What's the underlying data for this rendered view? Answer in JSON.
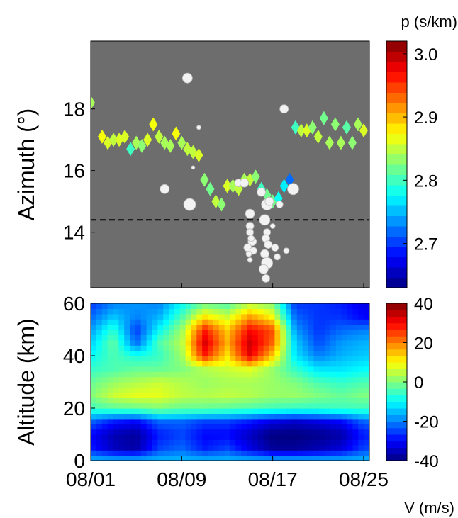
{
  "chart_data": [
    {
      "type": "scatter",
      "ylabel": "Azimuth (°)",
      "yticks": [
        14,
        16,
        18
      ],
      "ylim": [
        12.2,
        20.2
      ],
      "xlim": [
        0,
        24.5
      ],
      "colorbar": {
        "label": "p (s/km)",
        "ticks": [
          "3.0",
          "2.9",
          "2.8",
          "2.7"
        ],
        "tick_values": [
          3.0,
          2.9,
          2.8,
          2.7
        ],
        "range": [
          2.63,
          3.02
        ]
      },
      "reference_line": 14.4,
      "background": "#6d6d6d",
      "series": [
        {
          "kind": "diamonds",
          "x": [
            0,
            1,
            1.5,
            2,
            2.5,
            3,
            3.5,
            4,
            4.5,
            5,
            5.5,
            6,
            6.5,
            7,
            7.5,
            8,
            8.5,
            9,
            9.5,
            10,
            10.5,
            11,
            11.5,
            12,
            12.5,
            13,
            13.5,
            14,
            14.5,
            15,
            15.5,
            16,
            16.5,
            17,
            17.5,
            18,
            18.5,
            19,
            19.5,
            20,
            20.5,
            21,
            21.5,
            22,
            22.5,
            23,
            23.5,
            24
          ],
          "y": [
            18.2,
            17.1,
            16.9,
            17.0,
            17.0,
            17.1,
            16.7,
            16.9,
            16.8,
            17.0,
            17.5,
            17.1,
            16.9,
            16.8,
            17.2,
            16.9,
            16.7,
            16.6,
            16.5,
            15.7,
            15.4,
            15.0,
            14.9,
            15.5,
            15.5,
            15.4,
            15.7,
            15.7,
            15.8,
            15.4,
            15.2,
            15.0,
            15.1,
            15.5,
            15.7,
            17.4,
            17.3,
            17.3,
            17.4,
            17.1,
            17.7,
            16.9,
            17.5,
            16.9,
            17.4,
            16.9,
            17.5,
            17.3
          ],
          "p": [
            2.84,
            2.87,
            2.86,
            2.85,
            2.86,
            2.86,
            2.8,
            2.84,
            2.83,
            2.86,
            2.87,
            2.85,
            2.84,
            2.84,
            2.87,
            2.84,
            2.85,
            2.85,
            2.86,
            2.83,
            2.82,
            2.85,
            2.83,
            2.86,
            2.84,
            2.85,
            2.84,
            2.85,
            2.83,
            2.8,
            2.82,
            2.82,
            2.78,
            2.77,
            2.72,
            2.8,
            2.85,
            2.86,
            2.83,
            2.85,
            2.82,
            2.84,
            2.83,
            2.84,
            2.81,
            2.83,
            2.84,
            2.86
          ]
        },
        {
          "kind": "circles",
          "x": [
            6.5,
            8.5,
            8.7,
            9,
            9.5,
            13,
            13.5,
            14,
            14,
            14,
            14.2,
            13.8,
            14.3,
            14.1,
            13.9,
            14,
            15,
            15.3,
            15.5,
            15.7,
            15.5,
            15.4,
            15.6,
            15.3,
            15.5,
            15.2,
            15.4,
            16.2,
            16.4,
            17.8,
            17,
            16.6,
            17.2,
            16
          ],
          "y": [
            15.4,
            19.0,
            14.9,
            16.1,
            17.4,
            15.6,
            15.6,
            14.6,
            14.2,
            14.0,
            13.7,
            13.5,
            13.4,
            13.8,
            13.3,
            13.1,
            15.3,
            14.4,
            14.9,
            15.0,
            14.0,
            13.8,
            13.6,
            13.3,
            13.0,
            12.8,
            12.5,
            13.5,
            13.2,
            15.4,
            18.0,
            14.9,
            13.4,
            14.2
          ],
          "size": [
            11,
            12,
            15,
            3,
            4,
            9,
            10,
            11,
            9,
            8,
            10,
            9,
            8,
            7,
            6,
            5,
            10,
            13,
            14,
            10,
            8,
            9,
            9,
            10,
            14,
            11,
            9,
            8,
            7,
            14,
            10,
            8,
            6,
            5
          ]
        }
      ]
    },
    {
      "type": "heatmap",
      "ylabel": "Altitude (km)",
      "yticks": [
        0,
        20,
        40,
        60
      ],
      "ylim": [
        0,
        60
      ],
      "xticks": [
        "08/01",
        "08/09",
        "08/17",
        "08/25"
      ],
      "xtick_days": [
        0,
        8,
        16,
        24
      ],
      "xlim": [
        0,
        24.5
      ],
      "colorbar": {
        "label": "V (m/s)",
        "ticks": [
          "40",
          "20",
          "0",
          "-20",
          "-40"
        ],
        "tick_values": [
          40,
          20,
          0,
          -20,
          -40
        ],
        "range": [
          -40,
          40
        ]
      },
      "days": [
        0,
        2,
        4,
        6,
        8,
        10,
        12,
        14,
        16,
        18,
        20,
        22,
        24
      ],
      "altitudes_km": [
        0,
        5,
        10,
        15,
        20,
        25,
        30,
        35,
        40,
        45,
        50,
        55,
        60
      ],
      "wind_ms": [
        [
          -15,
          -15,
          -15,
          -15,
          -15,
          -15,
          -15,
          -15,
          -15,
          -15,
          -15,
          -15,
          -15
        ],
        [
          -28,
          -35,
          -37,
          -25,
          -22,
          -28,
          -25,
          -32,
          -38,
          -38,
          -36,
          -33,
          -25
        ],
        [
          -30,
          -36,
          -38,
          -28,
          -25,
          -30,
          -30,
          -35,
          -40,
          -40,
          -39,
          -37,
          -28
        ],
        [
          -22,
          -28,
          -30,
          -22,
          -22,
          -25,
          -25,
          -28,
          -32,
          -34,
          -32,
          -30,
          -22
        ],
        [
          -5,
          -3,
          -2,
          0,
          -2,
          -2,
          -3,
          -4,
          -5,
          -6,
          -6,
          -5,
          -5
        ],
        [
          0,
          6,
          8,
          8,
          5,
          4,
          5,
          4,
          2,
          2,
          0,
          -2,
          0
        ],
        [
          -2,
          2,
          4,
          6,
          4,
          2,
          3,
          3,
          2,
          0,
          -4,
          -6,
          -4
        ],
        [
          -6,
          -4,
          -2,
          -2,
          0,
          4,
          6,
          8,
          2,
          -6,
          -12,
          -12,
          -10
        ],
        [
          -10,
          -4,
          -8,
          -6,
          2,
          28,
          12,
          32,
          14,
          -12,
          -20,
          -16,
          -14
        ],
        [
          -14,
          -2,
          -22,
          -4,
          4,
          33,
          16,
          34,
          22,
          -14,
          -24,
          -18,
          -16
        ],
        [
          -18,
          -6,
          -26,
          -10,
          2,
          28,
          14,
          30,
          24,
          -18,
          -26,
          -22,
          -20
        ],
        [
          -22,
          -14,
          -20,
          -16,
          -4,
          12,
          6,
          18,
          10,
          -22,
          -26,
          -26,
          -30
        ],
        [
          -26,
          -20,
          -18,
          -20,
          -10,
          -2,
          -4,
          4,
          0,
          -26,
          -26,
          -28,
          -32
        ]
      ]
    }
  ]
}
